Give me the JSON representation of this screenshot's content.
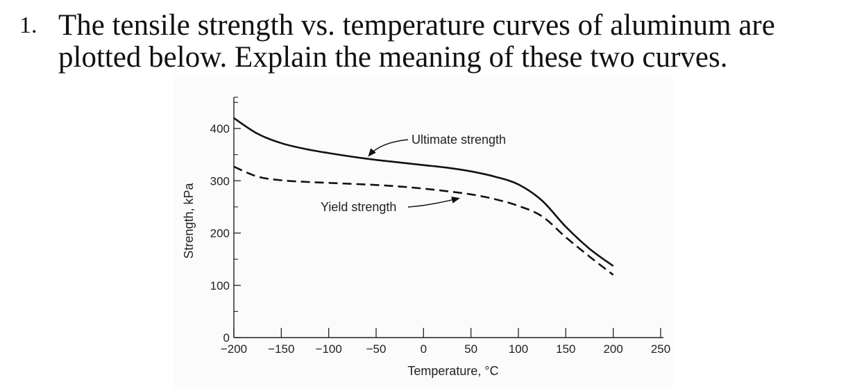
{
  "question": {
    "number": "1.",
    "text": "The tensile strength vs. temperature curves of aluminum are plotted below. Explain the meaning of these two curves."
  },
  "chart_data": {
    "type": "line",
    "title": "",
    "xlabel": "Temperature, °C",
    "ylabel": "Strength, kPa",
    "xlim": [
      -200,
      250
    ],
    "ylim": [
      0,
      400
    ],
    "xticks": [
      -200,
      -150,
      -100,
      -50,
      0,
      50,
      100,
      150,
      200,
      250
    ],
    "xtick_labels": [
      "−200",
      "−150",
      "−100",
      "−50",
      "0",
      "50",
      "100",
      "150",
      "200",
      "250"
    ],
    "yticks": [
      0,
      100,
      200,
      300,
      400
    ],
    "ytick_labels": [
      "0",
      "100",
      "200",
      "300",
      "400"
    ],
    "grid": false,
    "series": [
      {
        "name": "Ultimate strength",
        "style": "solid",
        "color": "#111111",
        "x": [
          -200,
          -175,
          -150,
          -125,
          -100,
          -75,
          -50,
          -25,
          0,
          25,
          50,
          75,
          100,
          125,
          150,
          175,
          200
        ],
        "y": [
          420,
          390,
          372,
          361,
          353,
          346,
          340,
          335,
          330,
          325,
          318,
          308,
          293,
          262,
          212,
          170,
          137
        ]
      },
      {
        "name": "Yield strength",
        "style": "dashed",
        "color": "#111111",
        "x": [
          -200,
          -175,
          -150,
          -125,
          -100,
          -75,
          -50,
          -25,
          0,
          25,
          50,
          75,
          100,
          125,
          150,
          175,
          200
        ],
        "y": [
          327,
          308,
          301,
          298,
          296,
          294,
          292,
          289,
          285,
          280,
          274,
          265,
          252,
          232,
          192,
          155,
          120
        ]
      }
    ],
    "annotations": [
      {
        "text": "Ultimate strength",
        "points_to_x": -62,
        "points_to_y": 340
      },
      {
        "text": "Yield strength",
        "points_to_x": 40,
        "points_to_y": 277
      }
    ]
  }
}
